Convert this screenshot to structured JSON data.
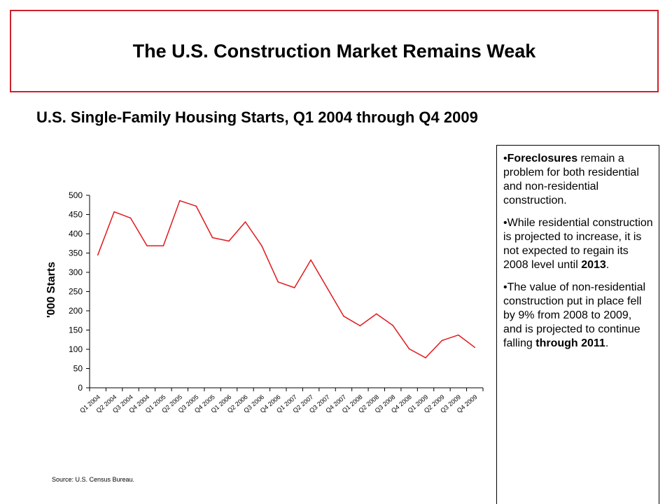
{
  "header": {
    "title": "The U.S. Construction Market Remains Weak"
  },
  "subtitle": "U.S. Single-Family Housing Starts, Q1 2004 through Q4 2009",
  "colors": {
    "accent": "#cc2229",
    "line": "#e0191c"
  },
  "sidebar": {
    "bullet_1": {
      "bold_lead": "Foreclosures",
      "text": " remain a problem for both residential and non-residential construction."
    },
    "bullet_2": {
      "text": "While residential construction is projected to increase, it is not expected to regain its 2008 level until ",
      "bold_tail": "2013",
      "end": "."
    },
    "bullet_3": {
      "text": "The value of non-residential construction put in place fell by 9% from 2008 to 2009, and is projected to continue falling ",
      "bold_tail": "through 2011",
      "end": "."
    }
  },
  "source": "Source:  U.S. Census Bureau.",
  "chart_data": {
    "type": "line",
    "title": "",
    "xlabel": "",
    "ylabel": "'000 Starts",
    "ylim": [
      0,
      500
    ],
    "yticks": [
      0,
      50,
      100,
      150,
      200,
      250,
      300,
      350,
      400,
      450,
      500
    ],
    "grid": false,
    "categories": [
      "Q1 2004",
      "Q2 2004",
      "Q3 2004",
      "Q4 2004",
      "Q1 2005",
      "Q2 2005",
      "Q3 2005",
      "Q4 2005",
      "Q1 2006",
      "Q2 2006",
      "Q3 2006",
      "Q4 2006",
      "Q1 2007",
      "Q2 2007",
      "Q3 2007",
      "Q4 2007",
      "Q1 2008",
      "Q2 2008",
      "Q3 2008",
      "Q4 2008",
      "Q1 2009",
      "Q2 2009",
      "Q3 2009",
      "Q4 2009"
    ],
    "series": [
      {
        "values": [
          345,
          457,
          441,
          369,
          369,
          486,
          472,
          390,
          381,
          431,
          369,
          275,
          260,
          332,
          259,
          186,
          161,
          192,
          162,
          101,
          78,
          123,
          137,
          105
        ]
      }
    ]
  }
}
